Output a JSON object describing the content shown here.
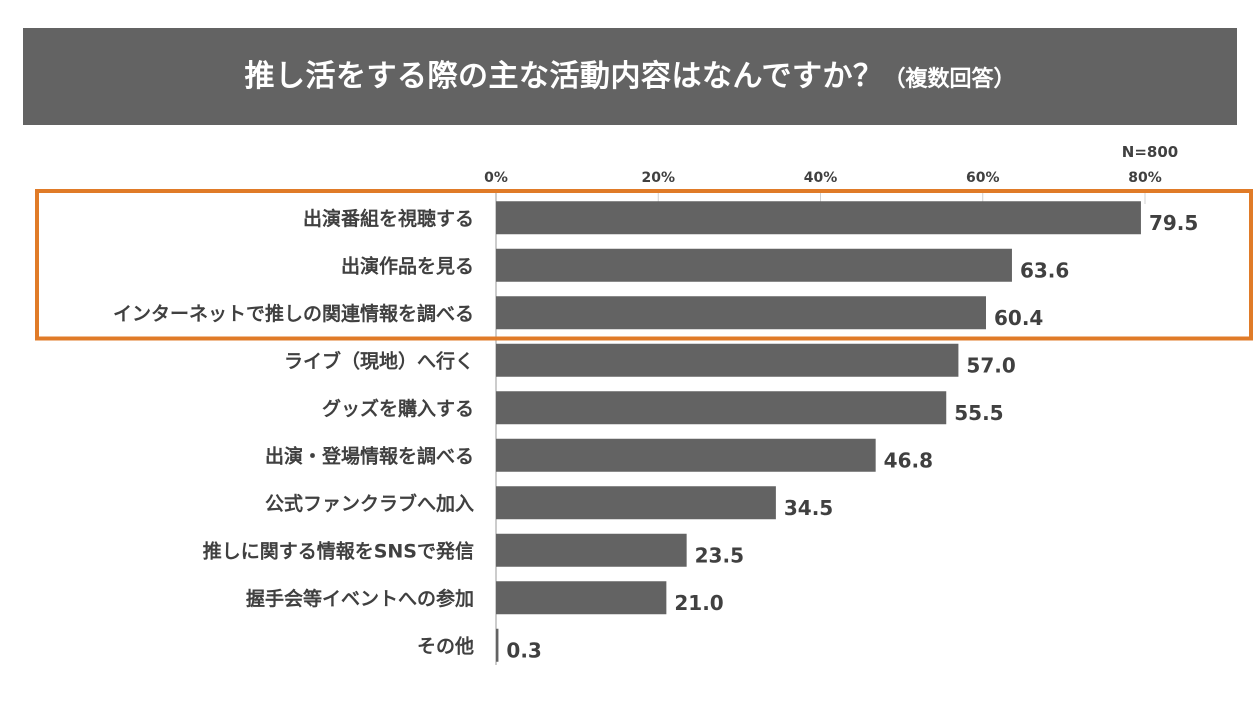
{
  "title": {
    "main": "推し活をする際の主な活動内容はなんですか？",
    "sub": "（複数回答）"
  },
  "sample_size": "N=800",
  "colors": {
    "banner": "#636363",
    "bar": "#636363",
    "highlight": "#E07B28",
    "text": "#404040",
    "grid": "#D0D0D0"
  },
  "chart_data": {
    "type": "bar",
    "orientation": "horizontal",
    "title": "推し活をする際の主な活動内容はなんですか？（複数回答）",
    "xlabel": "",
    "ylabel": "",
    "xlim": [
      0,
      80
    ],
    "ticks": [
      0,
      20,
      40,
      60,
      80
    ],
    "tick_labels": [
      "0%",
      "20%",
      "40%",
      "60%",
      "80%"
    ],
    "categories": [
      "出演番組を視聴する",
      "出演作品を見る",
      "インターネットで推しの関連情報を調べる",
      "ライブ（現地）へ行く",
      "グッズを購入する",
      "出演・登場情報を調べる",
      "公式ファンクラブへ加入",
      "推しに関する情報をSNSで発信",
      "握手会等イベントへの参加",
      "その他"
    ],
    "values": [
      79.5,
      63.6,
      60.4,
      57.0,
      55.5,
      46.8,
      34.5,
      23.5,
      21.0,
      0.3
    ],
    "value_labels": [
      "79.5",
      "63.6",
      "60.4",
      "57.0",
      "55.5",
      "46.8",
      "34.5",
      "23.5",
      "21.0",
      "0.3"
    ],
    "highlighted_categories": [
      0,
      1,
      2
    ],
    "grid": true,
    "legend": "none"
  }
}
